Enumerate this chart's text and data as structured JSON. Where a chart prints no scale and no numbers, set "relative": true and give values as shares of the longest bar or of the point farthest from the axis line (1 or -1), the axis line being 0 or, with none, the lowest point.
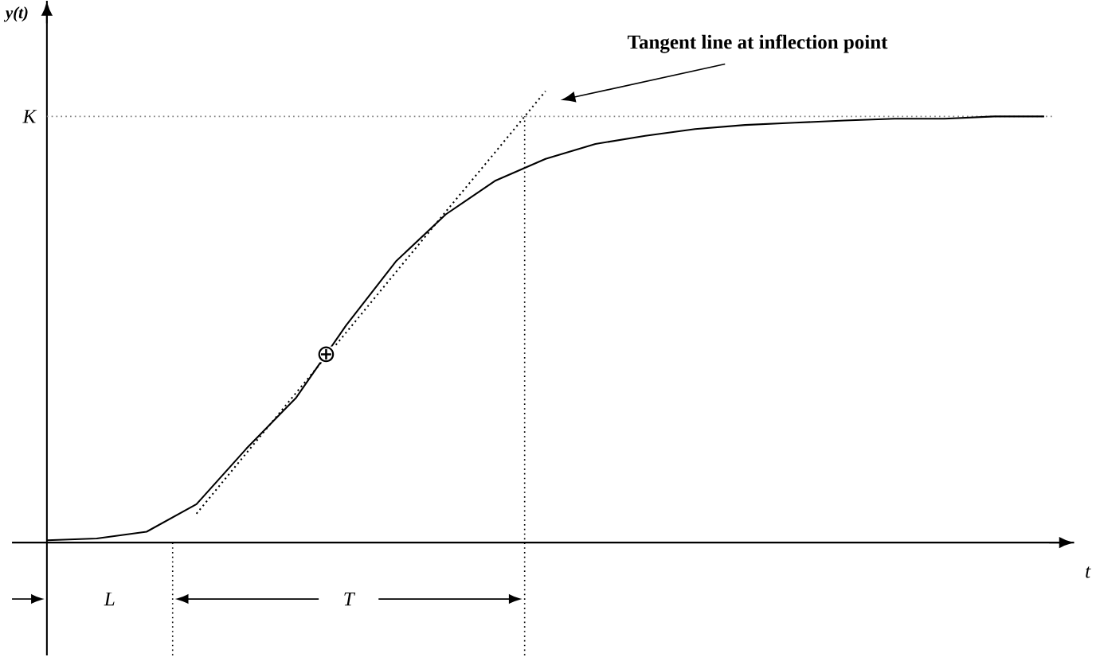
{
  "chart_data": {
    "type": "line",
    "relative": true,
    "xlabel": "t",
    "ylabel": "y(t)",
    "categories": [
      null,
      null,
      null,
      null,
      null,
      null,
      null,
      null,
      null,
      null,
      null,
      null,
      null,
      null,
      null,
      null,
      null,
      null,
      null,
      null,
      null
    ],
    "series": [
      {
        "color": "#000000",
        "values": [
          0.005,
          0.009,
          0.024,
          0.085,
          0.208,
          0.321,
          0.481,
          0.623,
          0.727,
          0.802,
          0.85,
          0.883,
          0.901,
          0.916,
          0.925,
          0.93,
          0.935,
          0.939,
          0.939,
          0.944,
          0.944
        ]
      },
      {
        "type": "line",
        "color": "#000000",
        "line_style": "dotted",
        "values": [
          null,
          null,
          null,
          0.064,
          0.198,
          0.332,
          0.465,
          0.599,
          0.733,
          0.866,
          1.0,
          null,
          null,
          null,
          null,
          null,
          null,
          null,
          null,
          null,
          null
        ]
      }
    ],
    "ref_lines": [
      {
        "axis": "y",
        "value": 0.944,
        "label": "K",
        "color": "#808080",
        "line_style": "dotted"
      }
    ],
    "annotations": [
      "Tangent line at inflection point",
      "L",
      "T",
      "⊕"
    ]
  }
}
